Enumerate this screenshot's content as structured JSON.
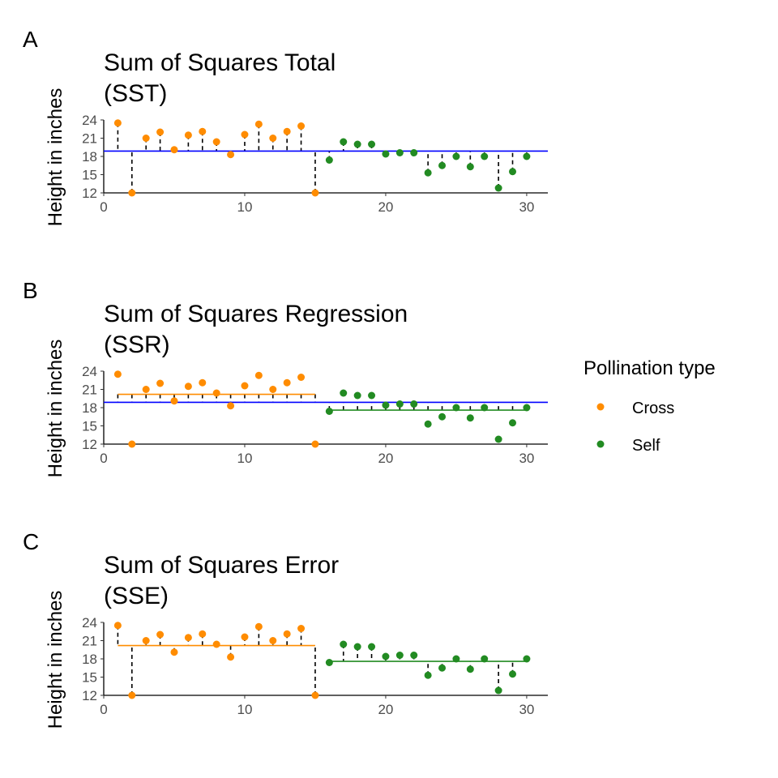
{
  "chart_data": [
    {
      "type": "scatter",
      "panel": "A",
      "title_line1": "Sum of Squares Total",
      "title_line2": "(SST)",
      "ylabel": "Height in inches",
      "xlabel": "",
      "xlim": [
        0,
        31.5
      ],
      "ylim": [
        12,
        24
      ],
      "yticks": [
        12,
        15,
        18,
        21,
        24
      ],
      "xticks": [
        0,
        10,
        20,
        30
      ],
      "segments": "to_grand_mean",
      "mean_lines": [
        "grand"
      ],
      "grid": false
    },
    {
      "type": "scatter",
      "panel": "B",
      "title_line1": "Sum of Squares Regression",
      "title_line2": "(SSR)",
      "ylabel": "Height in inches",
      "xlabel": "",
      "xlim": [
        0,
        31.5
      ],
      "ylim": [
        12,
        24
      ],
      "yticks": [
        12,
        15,
        18,
        21,
        24
      ],
      "xticks": [
        0,
        10,
        20,
        30
      ],
      "segments": "group_mean_to_grand_mean",
      "mean_lines": [
        "grand",
        "group"
      ],
      "grid": false
    },
    {
      "type": "scatter",
      "panel": "C",
      "title_line1": "Sum of Squares Error",
      "title_line2": "(SSE)",
      "ylabel": "Height in inches",
      "xlabel": "",
      "xlim": [
        0,
        31.5
      ],
      "ylim": [
        12,
        24
      ],
      "yticks": [
        12,
        15,
        18,
        21,
        24
      ],
      "xticks": [
        0,
        10,
        20,
        30
      ],
      "segments": "to_group_mean",
      "mean_lines": [
        "group"
      ],
      "grid": false
    }
  ],
  "series": [
    {
      "name": "Cross",
      "color": "#ff8c00",
      "x": [
        1,
        2,
        3,
        4,
        5,
        6,
        7,
        8,
        9,
        10,
        11,
        12,
        13,
        14,
        15
      ],
      "y": [
        23.5,
        12.0,
        21.0,
        22.0,
        19.1,
        21.5,
        22.1,
        20.4,
        18.3,
        21.6,
        23.3,
        21.0,
        22.1,
        23.0,
        12.0
      ]
    },
    {
      "name": "Self",
      "color": "#228b22",
      "x": [
        16,
        17,
        18,
        19,
        20,
        21,
        22,
        23,
        24,
        25,
        26,
        27,
        28,
        29,
        30
      ],
      "y": [
        17.4,
        20.4,
        20.0,
        20.0,
        18.4,
        18.6,
        18.6,
        15.3,
        16.5,
        18.0,
        16.3,
        18.0,
        12.8,
        15.5,
        18.0
      ]
    }
  ],
  "grand_mean": 18.88,
  "grand_mean_color": "#0000ff",
  "legend": {
    "title": "Pollination type",
    "items": [
      {
        "label": "Cross",
        "color": "#ff8c00"
      },
      {
        "label": "Self",
        "color": "#228b22"
      }
    ],
    "placement": "right"
  }
}
